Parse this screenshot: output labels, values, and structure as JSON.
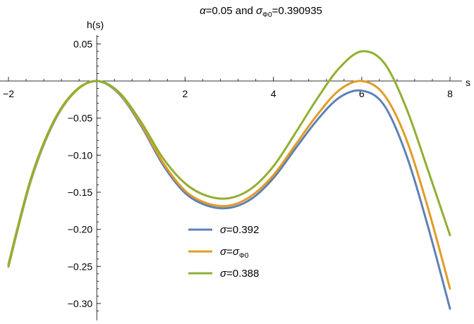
{
  "chart_data": {
    "type": "line",
    "title": {
      "alpha_symbol": "α",
      "alpha_text": "=0.05 and ",
      "sigma_symbol": "σ",
      "sigma_sub": "Φ0",
      "sigma_value": "=0.390935"
    },
    "ylabel": "h(s)",
    "xlabel": "s",
    "xlim": [
      -2,
      8
    ],
    "ylim": [
      -0.33,
      0.065
    ],
    "x_ticks": [
      -2,
      2,
      4,
      6,
      8
    ],
    "x_tick_labels": [
      "−2",
      "2",
      "4",
      "6",
      "8"
    ],
    "y_ticks": [
      0.05,
      -0.05,
      -0.1,
      -0.15,
      -0.2,
      -0.25,
      -0.3
    ],
    "y_tick_labels": [
      "0.05",
      "−0.05",
      "−0.10",
      "−0.15",
      "−0.20",
      "−0.25",
      "−0.30"
    ],
    "grid": false,
    "legend_position": "bottom-center",
    "series": [
      {
        "legend": {
          "symbol": "σ",
          "text": "=0.392",
          "sub": ""
        },
        "color": "#5E81B5",
        "x": [
          -2,
          -1.5,
          -1,
          -0.5,
          0,
          0.5,
          1,
          1.5,
          2,
          2.5,
          3,
          3.5,
          4,
          4.5,
          5,
          5.5,
          6,
          6.5,
          7,
          7.5,
          8
        ],
        "values": [
          -0.25,
          -0.136,
          -0.059,
          -0.015,
          0.0,
          -0.017,
          -0.06,
          -0.113,
          -0.151,
          -0.168,
          -0.171,
          -0.159,
          -0.131,
          -0.091,
          -0.052,
          -0.022,
          -0.013,
          -0.032,
          -0.098,
          -0.196,
          -0.307
        ]
      },
      {
        "legend": {
          "symbol": "σ",
          "text": "=",
          "sub": "Φ0"
        },
        "color": "#E19C24",
        "x": [
          -2,
          -1.5,
          -1,
          -0.5,
          0,
          0.5,
          1,
          1.5,
          2,
          2.5,
          3,
          3.5,
          4,
          4.5,
          5,
          5.5,
          6,
          6.5,
          7,
          7.5,
          8
        ],
        "values": [
          -0.249,
          -0.135,
          -0.058,
          -0.015,
          0.0,
          -0.016,
          -0.058,
          -0.11,
          -0.148,
          -0.165,
          -0.168,
          -0.155,
          -0.127,
          -0.086,
          -0.045,
          -0.012,
          0.0,
          -0.018,
          -0.077,
          -0.171,
          -0.28
        ]
      },
      {
        "legend": {
          "symbol": "σ",
          "text": "=0.388",
          "sub": ""
        },
        "color": "#8FB032",
        "x": [
          -2,
          -1.5,
          -1,
          -0.5,
          0,
          0.5,
          1,
          1.5,
          2,
          2.5,
          3,
          3.5,
          4,
          4.5,
          5,
          5.5,
          6,
          6.5,
          7,
          7.5,
          8
        ],
        "values": [
          -0.247,
          -0.133,
          -0.057,
          -0.014,
          0.0,
          -0.015,
          -0.055,
          -0.104,
          -0.138,
          -0.155,
          -0.158,
          -0.145,
          -0.115,
          -0.07,
          -0.023,
          0.018,
          0.04,
          0.025,
          -0.035,
          -0.12,
          -0.208
        ]
      }
    ]
  }
}
